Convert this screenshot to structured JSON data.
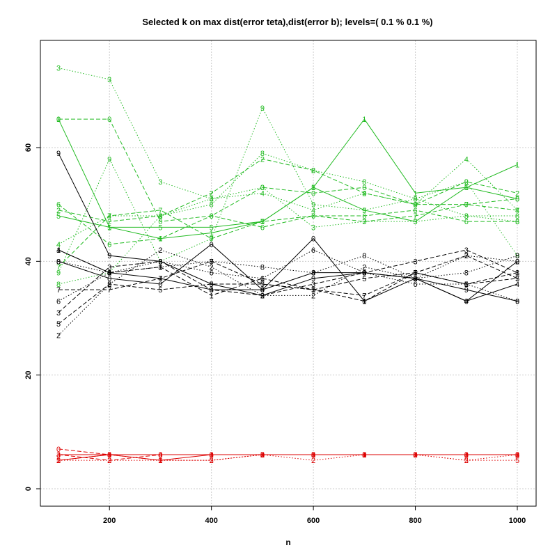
{
  "chart_data": {
    "type": "line",
    "title": "Selected k on max dist(error teta),dist(error b); levels=( 0.1 % 0.1 %)",
    "xlabel": "n",
    "ylabel": "",
    "x": [
      100,
      200,
      300,
      400,
      500,
      600,
      700,
      800,
      900,
      1000
    ],
    "xticks": [
      200,
      400,
      600,
      800,
      1000
    ],
    "yticks": [
      0,
      20,
      40,
      60
    ],
    "xlim": [
      100,
      1000
    ],
    "ylim": [
      0,
      75
    ],
    "grid": true,
    "colors": {
      "green": "#22bb22",
      "black": "#000000",
      "red": "#dd0000"
    },
    "series": [
      {
        "color": "green",
        "line": "dashed",
        "values": [
          65,
          65,
          47,
          48,
          53,
          52,
          53,
          50,
          50,
          51
        ]
      },
      {
        "color": "green",
        "line": "solid",
        "values": [
          65,
          46,
          44,
          45,
          47,
          53,
          65,
          52,
          53,
          57
        ]
      },
      {
        "color": "green",
        "line": "dashed",
        "values": [
          49,
          47,
          48,
          52,
          58,
          56,
          52,
          50,
          54,
          52
        ]
      },
      {
        "color": "green",
        "line": "dotted",
        "values": [
          74,
          72,
          54,
          51,
          53,
          46,
          47,
          47,
          48,
          47
        ]
      },
      {
        "color": "green",
        "line": "dotted",
        "values": [
          43,
          48,
          48,
          51,
          52,
          49,
          52,
          50,
          58,
          49
        ]
      },
      {
        "color": "green",
        "line": "solid",
        "values": [
          48,
          46,
          46,
          46,
          47,
          53,
          49,
          47,
          53,
          51
        ]
      },
      {
        "color": "green",
        "line": "dashed",
        "values": [
          50,
          43,
          44,
          48,
          46,
          48,
          48,
          49,
          47,
          47
        ]
      },
      {
        "color": "green",
        "line": "dashed",
        "values": [
          39,
          48,
          49,
          44,
          47,
          48,
          47,
          48,
          50,
          49
        ]
      },
      {
        "color": "green",
        "line": "dotted",
        "values": [
          36,
          38,
          48,
          50,
          59,
          56,
          54,
          51,
          48,
          48
        ]
      },
      {
        "color": "green",
        "line": "dotted",
        "values": [
          38,
          58,
          40,
          44,
          67,
          50,
          49,
          51,
          54,
          41
        ]
      },
      {
        "color": "black",
        "line": "solid",
        "values": [
          40,
          37,
          36,
          43,
          35,
          44,
          33,
          37,
          33,
          40
        ]
      },
      {
        "color": "black",
        "line": "dashed",
        "values": [
          42,
          38,
          39,
          34,
          37,
          35,
          33,
          38,
          36,
          38
        ]
      },
      {
        "color": "black",
        "line": "dotted",
        "values": [
          27,
          36,
          42,
          39,
          34,
          34,
          39,
          37,
          41,
          40
        ]
      },
      {
        "color": "black",
        "line": "dashed",
        "values": [
          31,
          39,
          40,
          35,
          34,
          36,
          38,
          40,
          42,
          38
        ]
      },
      {
        "color": "black",
        "line": "solid",
        "values": [
          42,
          38,
          37,
          35,
          35,
          38,
          38,
          37,
          33,
          36
        ]
      },
      {
        "color": "black",
        "line": "dashed",
        "values": [
          29,
          36,
          35,
          36,
          36,
          35,
          37,
          38,
          36,
          37
        ]
      },
      {
        "color": "black",
        "line": "dotted",
        "values": [
          33,
          38,
          40,
          38,
          37,
          42,
          38,
          36,
          36,
          33
        ]
      },
      {
        "color": "black",
        "line": "dashed",
        "values": [
          35,
          35,
          37,
          40,
          36,
          35,
          34,
          38,
          41,
          37
        ]
      },
      {
        "color": "black",
        "line": "dotted",
        "values": [
          40,
          38,
          39,
          40,
          39,
          38,
          41,
          37,
          38,
          41
        ]
      },
      {
        "color": "black",
        "line": "solid",
        "values": [
          59,
          41,
          40,
          36,
          34,
          37,
          38,
          37,
          35,
          33
        ]
      },
      {
        "color": "red",
        "line": "dashed",
        "values": [
          7,
          6,
          6,
          6,
          6,
          6,
          6,
          6,
          6,
          6
        ]
      },
      {
        "color": "red",
        "line": "solid",
        "values": [
          5,
          6,
          5,
          6,
          6,
          6,
          6,
          6,
          6,
          6
        ]
      },
      {
        "color": "red",
        "line": "dotted",
        "values": [
          5,
          5,
          5,
          5,
          6,
          5,
          6,
          6,
          5,
          6
        ]
      },
      {
        "color": "red",
        "line": "dashed",
        "values": [
          6,
          5,
          6,
          6,
          6,
          6,
          6,
          6,
          6,
          6
        ]
      },
      {
        "color": "red",
        "line": "solid",
        "values": [
          6,
          6,
          6,
          6,
          6,
          6,
          6,
          6,
          6,
          6
        ]
      },
      {
        "color": "red",
        "line": "dotted",
        "values": [
          5,
          6,
          5,
          5,
          6,
          6,
          6,
          6,
          5,
          5
        ]
      }
    ]
  }
}
